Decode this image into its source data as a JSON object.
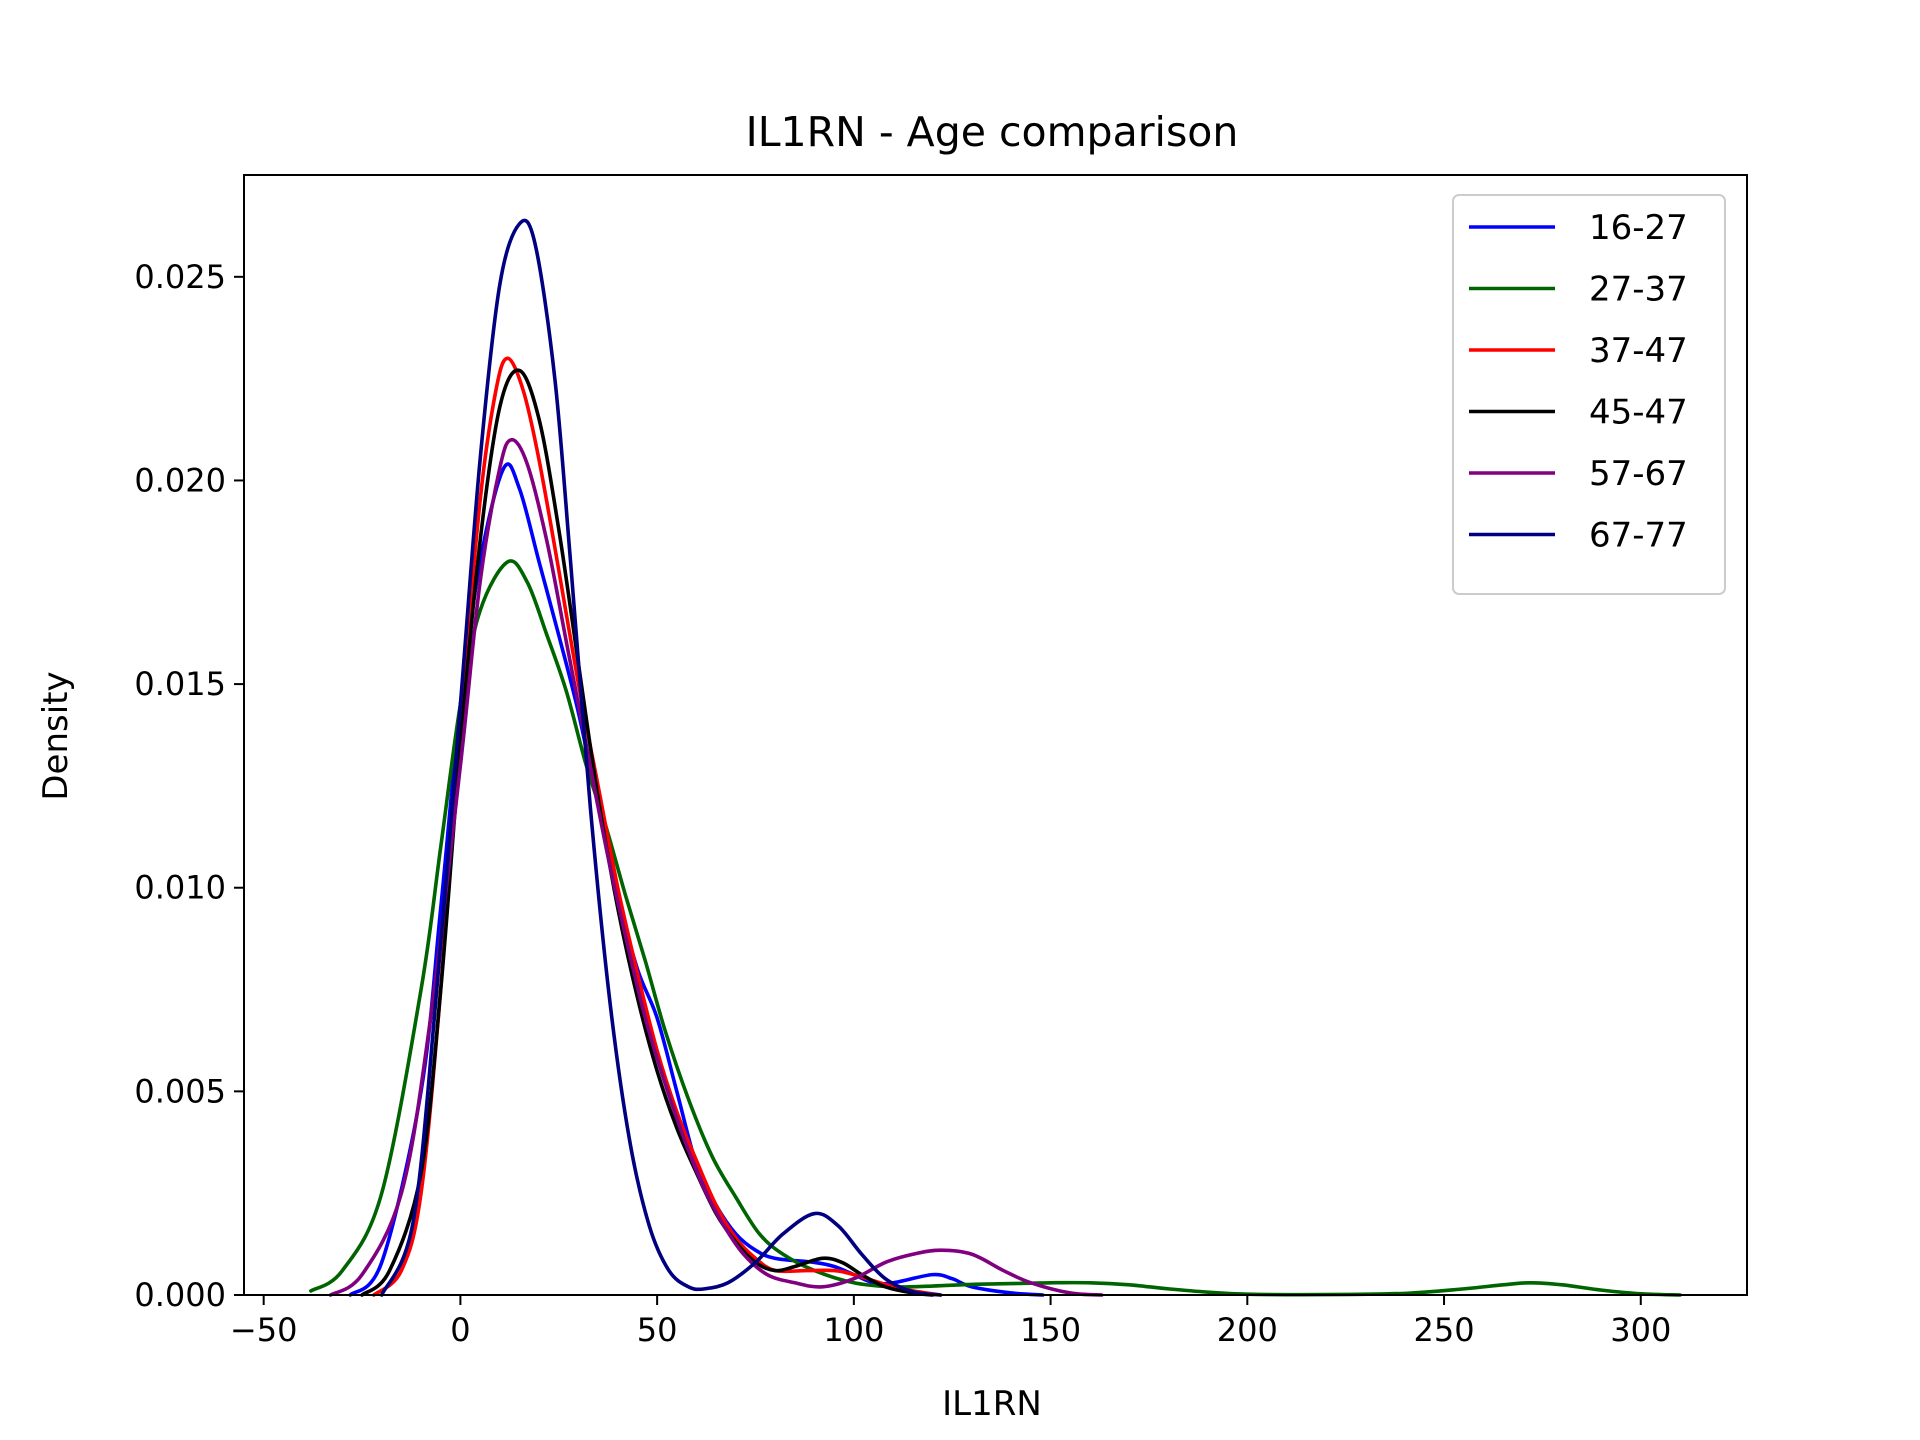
{
  "chart_data": {
    "type": "line",
    "title": "IL1RN - Age comparison",
    "xlabel": "IL1RN",
    "ylabel": "Density",
    "xlim": [
      -55,
      327
    ],
    "ylim": [
      0,
      0.0275
    ],
    "x_ticks": [
      -50,
      0,
      50,
      100,
      150,
      200,
      250,
      300
    ],
    "x_tick_labels": [
      "−50",
      "0",
      "50",
      "100",
      "150",
      "200",
      "250",
      "300"
    ],
    "y_ticks": [
      0,
      0.005,
      0.01,
      0.015,
      0.02,
      0.025
    ],
    "y_tick_labels": [
      "0.000",
      "0.005",
      "0.010",
      "0.015",
      "0.020",
      "0.025"
    ],
    "grid": false,
    "legend_position": "top-right",
    "series": [
      {
        "name": "16-27",
        "color": "#0000ff",
        "points": [
          [
            -28,
            0
          ],
          [
            -20,
            0.0008
          ],
          [
            -10,
            0.005
          ],
          [
            -5,
            0.0095
          ],
          [
            0,
            0.0145
          ],
          [
            5,
            0.018
          ],
          [
            11,
            0.0203
          ],
          [
            15,
            0.0198
          ],
          [
            20,
            0.018
          ],
          [
            25,
            0.0162
          ],
          [
            30,
            0.0143
          ],
          [
            35,
            0.012
          ],
          [
            40,
            0.0098
          ],
          [
            45,
            0.008
          ],
          [
            50,
            0.0068
          ],
          [
            55,
            0.005
          ],
          [
            60,
            0.0032
          ],
          [
            65,
            0.0022
          ],
          [
            70,
            0.0015
          ],
          [
            75,
            0.0011
          ],
          [
            80,
            0.0009
          ],
          [
            90,
            0.0008
          ],
          [
            95,
            0.0007
          ],
          [
            100,
            0.0005
          ],
          [
            105,
            0.0003
          ],
          [
            110,
            0.0003
          ],
          [
            120,
            0.0005
          ],
          [
            125,
            0.0004
          ],
          [
            130,
            0.0002
          ],
          [
            140,
            5e-05
          ],
          [
            148,
            0
          ]
        ]
      },
      {
        "name": "27-37",
        "color": "#006400",
        "points": [
          [
            -38,
            0.0001
          ],
          [
            -30,
            0.0006
          ],
          [
            -20,
            0.0025
          ],
          [
            -10,
            0.0075
          ],
          [
            -5,
            0.011
          ],
          [
            0,
            0.0145
          ],
          [
            5,
            0.0168
          ],
          [
            12,
            0.018
          ],
          [
            17,
            0.0175
          ],
          [
            22,
            0.0162
          ],
          [
            27,
            0.0148
          ],
          [
            32,
            0.013
          ],
          [
            37,
            0.0115
          ],
          [
            42,
            0.0098
          ],
          [
            47,
            0.0082
          ],
          [
            52,
            0.0065
          ],
          [
            58,
            0.0048
          ],
          [
            64,
            0.0034
          ],
          [
            70,
            0.0024
          ],
          [
            76,
            0.0015
          ],
          [
            82,
            0.001
          ],
          [
            90,
            0.0006
          ],
          [
            100,
            0.0003
          ],
          [
            110,
            0.0002
          ],
          [
            120,
            0.00022
          ],
          [
            130,
            0.00026
          ],
          [
            140,
            0.00028
          ],
          [
            150,
            0.0003
          ],
          [
            160,
            0.0003
          ],
          [
            170,
            0.00025
          ],
          [
            180,
            0.00015
          ],
          [
            190,
            7e-05
          ],
          [
            200,
            2e-05
          ],
          [
            220,
            1e-05
          ],
          [
            240,
            4e-05
          ],
          [
            255,
            0.00015
          ],
          [
            265,
            0.00025
          ],
          [
            272,
            0.0003
          ],
          [
            280,
            0.00025
          ],
          [
            290,
            0.00012
          ],
          [
            300,
            3e-05
          ],
          [
            310,
            0
          ]
        ]
      },
      {
        "name": "37-47",
        "color": "#ff0000",
        "points": [
          [
            -22,
            0
          ],
          [
            -15,
            0.0006
          ],
          [
            -10,
            0.0025
          ],
          [
            -5,
            0.0075
          ],
          [
            0,
            0.014
          ],
          [
            5,
            0.0195
          ],
          [
            9,
            0.0222
          ],
          [
            12,
            0.023
          ],
          [
            16,
            0.0222
          ],
          [
            20,
            0.0205
          ],
          [
            25,
            0.0178
          ],
          [
            30,
            0.015
          ],
          [
            35,
            0.0125
          ],
          [
            40,
            0.01
          ],
          [
            45,
            0.0079
          ],
          [
            50,
            0.006
          ],
          [
            55,
            0.0045
          ],
          [
            60,
            0.0033
          ],
          [
            65,
            0.0022
          ],
          [
            70,
            0.0014
          ],
          [
            75,
            0.0009
          ],
          [
            80,
            0.0006
          ],
          [
            88,
            0.0006
          ],
          [
            95,
            0.0006
          ],
          [
            100,
            0.0005
          ],
          [
            110,
            0.0002
          ],
          [
            115,
            0.0001
          ],
          [
            122,
            0
          ]
        ]
      },
      {
        "name": "45-47",
        "color": "#000000",
        "points": [
          [
            -25,
            0
          ],
          [
            -18,
            0.0006
          ],
          [
            -10,
            0.003
          ],
          [
            -5,
            0.0075
          ],
          [
            0,
            0.0135
          ],
          [
            5,
            0.0185
          ],
          [
            10,
            0.0218
          ],
          [
            15,
            0.0227
          ],
          [
            20,
            0.0215
          ],
          [
            25,
            0.0188
          ],
          [
            30,
            0.0155
          ],
          [
            35,
            0.0122
          ],
          [
            40,
            0.0095
          ],
          [
            45,
            0.0073
          ],
          [
            50,
            0.0055
          ],
          [
            55,
            0.0041
          ],
          [
            60,
            0.003
          ],
          [
            65,
            0.002
          ],
          [
            70,
            0.0013
          ],
          [
            75,
            0.0008
          ],
          [
            80,
            0.0006
          ],
          [
            85,
            0.0007
          ],
          [
            92,
            0.0009
          ],
          [
            97,
            0.0008
          ],
          [
            102,
            0.0005
          ],
          [
            108,
            0.0002
          ],
          [
            115,
            5e-05
          ],
          [
            120,
            0
          ]
        ]
      },
      {
        "name": "57-67",
        "color": "#800080",
        "points": [
          [
            -33,
            0
          ],
          [
            -25,
            0.0005
          ],
          [
            -15,
            0.0025
          ],
          [
            -8,
            0.0065
          ],
          [
            0,
            0.013
          ],
          [
            5,
            0.0175
          ],
          [
            10,
            0.0203
          ],
          [
            13,
            0.021
          ],
          [
            17,
            0.0204
          ],
          [
            22,
            0.0185
          ],
          [
            27,
            0.016
          ],
          [
            32,
            0.0135
          ],
          [
            37,
            0.011
          ],
          [
            42,
            0.0088
          ],
          [
            47,
            0.0068
          ],
          [
            52,
            0.0052
          ],
          [
            57,
            0.0038
          ],
          [
            62,
            0.0026
          ],
          [
            67,
            0.0017
          ],
          [
            72,
            0.001
          ],
          [
            78,
            0.0005
          ],
          [
            85,
            0.0003
          ],
          [
            92,
            0.0002
          ],
          [
            100,
            0.0004
          ],
          [
            108,
            0.0008
          ],
          [
            115,
            0.001
          ],
          [
            122,
            0.0011
          ],
          [
            130,
            0.001
          ],
          [
            138,
            0.0006
          ],
          [
            145,
            0.0003
          ],
          [
            155,
            5e-05
          ],
          [
            163,
            0
          ]
        ]
      },
      {
        "name": "67-77",
        "color": "#000080",
        "points": [
          [
            -20,
            0
          ],
          [
            -12,
            0.0018
          ],
          [
            -6,
            0.0075
          ],
          [
            0,
            0.0145
          ],
          [
            5,
            0.0205
          ],
          [
            10,
            0.0248
          ],
          [
            15,
            0.0263
          ],
          [
            19,
            0.0258
          ],
          [
            24,
            0.0225
          ],
          [
            28,
            0.018
          ],
          [
            33,
            0.012
          ],
          [
            38,
            0.0072
          ],
          [
            43,
            0.0038
          ],
          [
            48,
            0.0017
          ],
          [
            53,
            0.0006
          ],
          [
            58,
            0.0002
          ],
          [
            62,
            0.00015
          ],
          [
            68,
            0.0003
          ],
          [
            75,
            0.0008
          ],
          [
            82,
            0.0015
          ],
          [
            90,
            0.002
          ],
          [
            96,
            0.0017
          ],
          [
            102,
            0.001
          ],
          [
            108,
            0.0004
          ],
          [
            115,
            8e-05
          ],
          [
            122,
            0
          ]
        ]
      }
    ]
  }
}
